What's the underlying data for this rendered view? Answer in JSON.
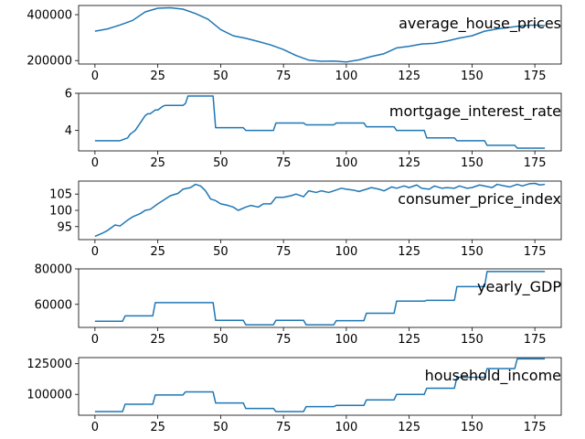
{
  "chart_data": [
    {
      "type": "line",
      "title": "average_house_prices",
      "legend_placement": "upper-right-inside",
      "grid": false,
      "color": "#1f77b4",
      "xlim": [
        -6.5,
        185.5
      ],
      "ylim": [
        185000,
        440000
      ],
      "xticks": [
        0,
        25,
        50,
        75,
        100,
        125,
        150,
        175
      ],
      "yticks": [
        200000,
        400000
      ],
      "x": [
        0,
        5,
        10,
        15,
        20,
        25,
        30,
        35,
        40,
        45,
        50,
        55,
        60,
        65,
        70,
        75,
        80,
        85,
        90,
        95,
        100,
        105,
        110,
        115,
        120,
        125,
        130,
        135,
        140,
        145,
        150,
        155,
        160,
        165,
        170,
        175,
        179
      ],
      "y": [
        328000,
        338000,
        355000,
        375000,
        412000,
        428000,
        430000,
        424000,
        405000,
        380000,
        335000,
        308000,
        297000,
        283000,
        268000,
        248000,
        222000,
        202000,
        197000,
        198000,
        194000,
        203000,
        218000,
        230000,
        255000,
        262000,
        272000,
        275000,
        285000,
        298000,
        308000,
        328000,
        338000,
        345000,
        352000,
        355000,
        352000
      ]
    },
    {
      "type": "line",
      "title": "mortgage_interest_rate",
      "legend_placement": "upper-right-inside",
      "grid": false,
      "color": "#1f77b4",
      "xlim": [
        -6.5,
        185.5
      ],
      "ylim": [
        2.9,
        6.0
      ],
      "xticks": [
        0,
        25,
        50,
        75,
        100,
        125,
        150,
        175
      ],
      "yticks": [
        4,
        6
      ],
      "x": [
        0,
        10,
        11,
        12,
        13,
        14,
        15,
        16,
        17,
        18,
        19,
        20,
        21,
        22,
        23,
        24,
        25,
        26,
        27,
        28,
        29,
        30,
        35,
        36,
        37,
        38,
        46,
        47,
        48,
        59,
        60,
        71,
        72,
        83,
        84,
        95,
        96,
        107,
        108,
        119,
        120,
        131,
        132,
        143,
        144,
        155,
        156,
        167,
        168,
        179
      ],
      "y": [
        3.45,
        3.45,
        3.5,
        3.55,
        3.6,
        3.8,
        3.9,
        4.0,
        4.2,
        4.4,
        4.6,
        4.8,
        4.9,
        4.9,
        5.0,
        5.1,
        5.1,
        5.2,
        5.3,
        5.35,
        5.35,
        5.35,
        5.35,
        5.45,
        5.85,
        5.85,
        5.85,
        5.85,
        4.15,
        4.15,
        4.0,
        4.0,
        4.4,
        4.4,
        4.3,
        4.3,
        4.4,
        4.4,
        4.2,
        4.2,
        4.0,
        4.0,
        3.6,
        3.6,
        3.45,
        3.45,
        3.2,
        3.2,
        3.05,
        3.05
      ]
    },
    {
      "type": "line",
      "title": "consumer_price_index",
      "legend_placement": "upper-right-inside",
      "grid": false,
      "color": "#1f77b4",
      "xlim": [
        -6.5,
        185.5
      ],
      "ylim": [
        91,
        109
      ],
      "xticks": [
        0,
        25,
        50,
        75,
        100,
        125,
        150,
        175
      ],
      "yticks": [
        95,
        100,
        105
      ],
      "x": [
        0,
        3,
        5,
        8,
        10,
        13,
        15,
        18,
        20,
        22,
        25,
        27,
        30,
        33,
        35,
        38,
        40,
        42,
        44,
        46,
        48,
        50,
        53,
        55,
        57,
        60,
        62,
        65,
        67,
        70,
        72,
        75,
        78,
        80,
        83,
        85,
        88,
        90,
        93,
        95,
        98,
        100,
        103,
        105,
        108,
        110,
        113,
        115,
        118,
        120,
        123,
        125,
        128,
        130,
        133,
        135,
        138,
        140,
        143,
        145,
        148,
        150,
        153,
        155,
        158,
        160,
        163,
        165,
        168,
        170,
        173,
        175,
        177,
        179
      ],
      "y": [
        92,
        93,
        93.8,
        95.5,
        95.2,
        97,
        98,
        99,
        100,
        100.3,
        102,
        103,
        104.5,
        105.2,
        106.5,
        107,
        108,
        107.5,
        106,
        103.5,
        103,
        102,
        101.5,
        101,
        100,
        101,
        101.5,
        101,
        102,
        102,
        104,
        104,
        104.5,
        105,
        104.2,
        106,
        105.5,
        106,
        105.5,
        106,
        106.8,
        106.5,
        106.2,
        105.8,
        106.5,
        107,
        106.5,
        106,
        107.2,
        106.8,
        107.5,
        107,
        107.8,
        106.8,
        106.5,
        107.5,
        106.8,
        107,
        106.8,
        107.5,
        106.8,
        107,
        107.8,
        107.5,
        107,
        108,
        107.5,
        107.2,
        108,
        107.5,
        108.2,
        108.3,
        107.8,
        108
      ]
    },
    {
      "type": "line",
      "title": "yearly_GDP",
      "legend_placement": "upper-right-inside",
      "grid": false,
      "color": "#1f77b4",
      "xlim": [
        -6.5,
        185.5
      ],
      "ylim": [
        47000,
        80000
      ],
      "xticks": [
        0,
        25,
        50,
        75,
        100,
        125,
        150,
        175
      ],
      "yticks": [
        60000,
        80000
      ],
      "x": [
        0,
        11,
        12,
        23,
        24,
        35,
        36,
        47,
        48,
        59,
        60,
        71,
        72,
        83,
        84,
        95,
        96,
        107,
        108,
        119,
        120,
        131,
        132,
        143,
        144,
        155,
        156,
        167,
        168,
        179
      ],
      "y": [
        50500,
        50500,
        53500,
        53500,
        61000,
        61000,
        61000,
        61000,
        51000,
        51000,
        48500,
        48500,
        51000,
        51000,
        48500,
        48500,
        50800,
        50800,
        55000,
        55000,
        61800,
        61800,
        62300,
        62300,
        70000,
        70000,
        78500,
        78500,
        78500,
        78500
      ]
    },
    {
      "type": "line",
      "title": "household_income",
      "legend_placement": "upper-right-inside",
      "grid": false,
      "color": "#1f77b4",
      "xlim": [
        -6.5,
        185.5
      ],
      "ylim": [
        83000,
        130000
      ],
      "xticks": [
        0,
        25,
        50,
        75,
        100,
        125,
        150,
        175
      ],
      "yticks": [
        100000,
        125000
      ],
      "x": [
        0,
        11,
        12,
        23,
        24,
        35,
        36,
        47,
        48,
        59,
        60,
        71,
        72,
        83,
        84,
        95,
        96,
        107,
        108,
        119,
        120,
        131,
        132,
        143,
        144,
        155,
        156,
        167,
        168,
        179
      ],
      "y": [
        86000,
        86000,
        92000,
        92000,
        99500,
        99500,
        102000,
        102000,
        93000,
        93000,
        88500,
        88500,
        86000,
        86000,
        90000,
        90000,
        91000,
        91000,
        95500,
        95500,
        100000,
        100000,
        105000,
        105000,
        114000,
        114000,
        121000,
        121000,
        129000,
        129000
      ]
    }
  ]
}
